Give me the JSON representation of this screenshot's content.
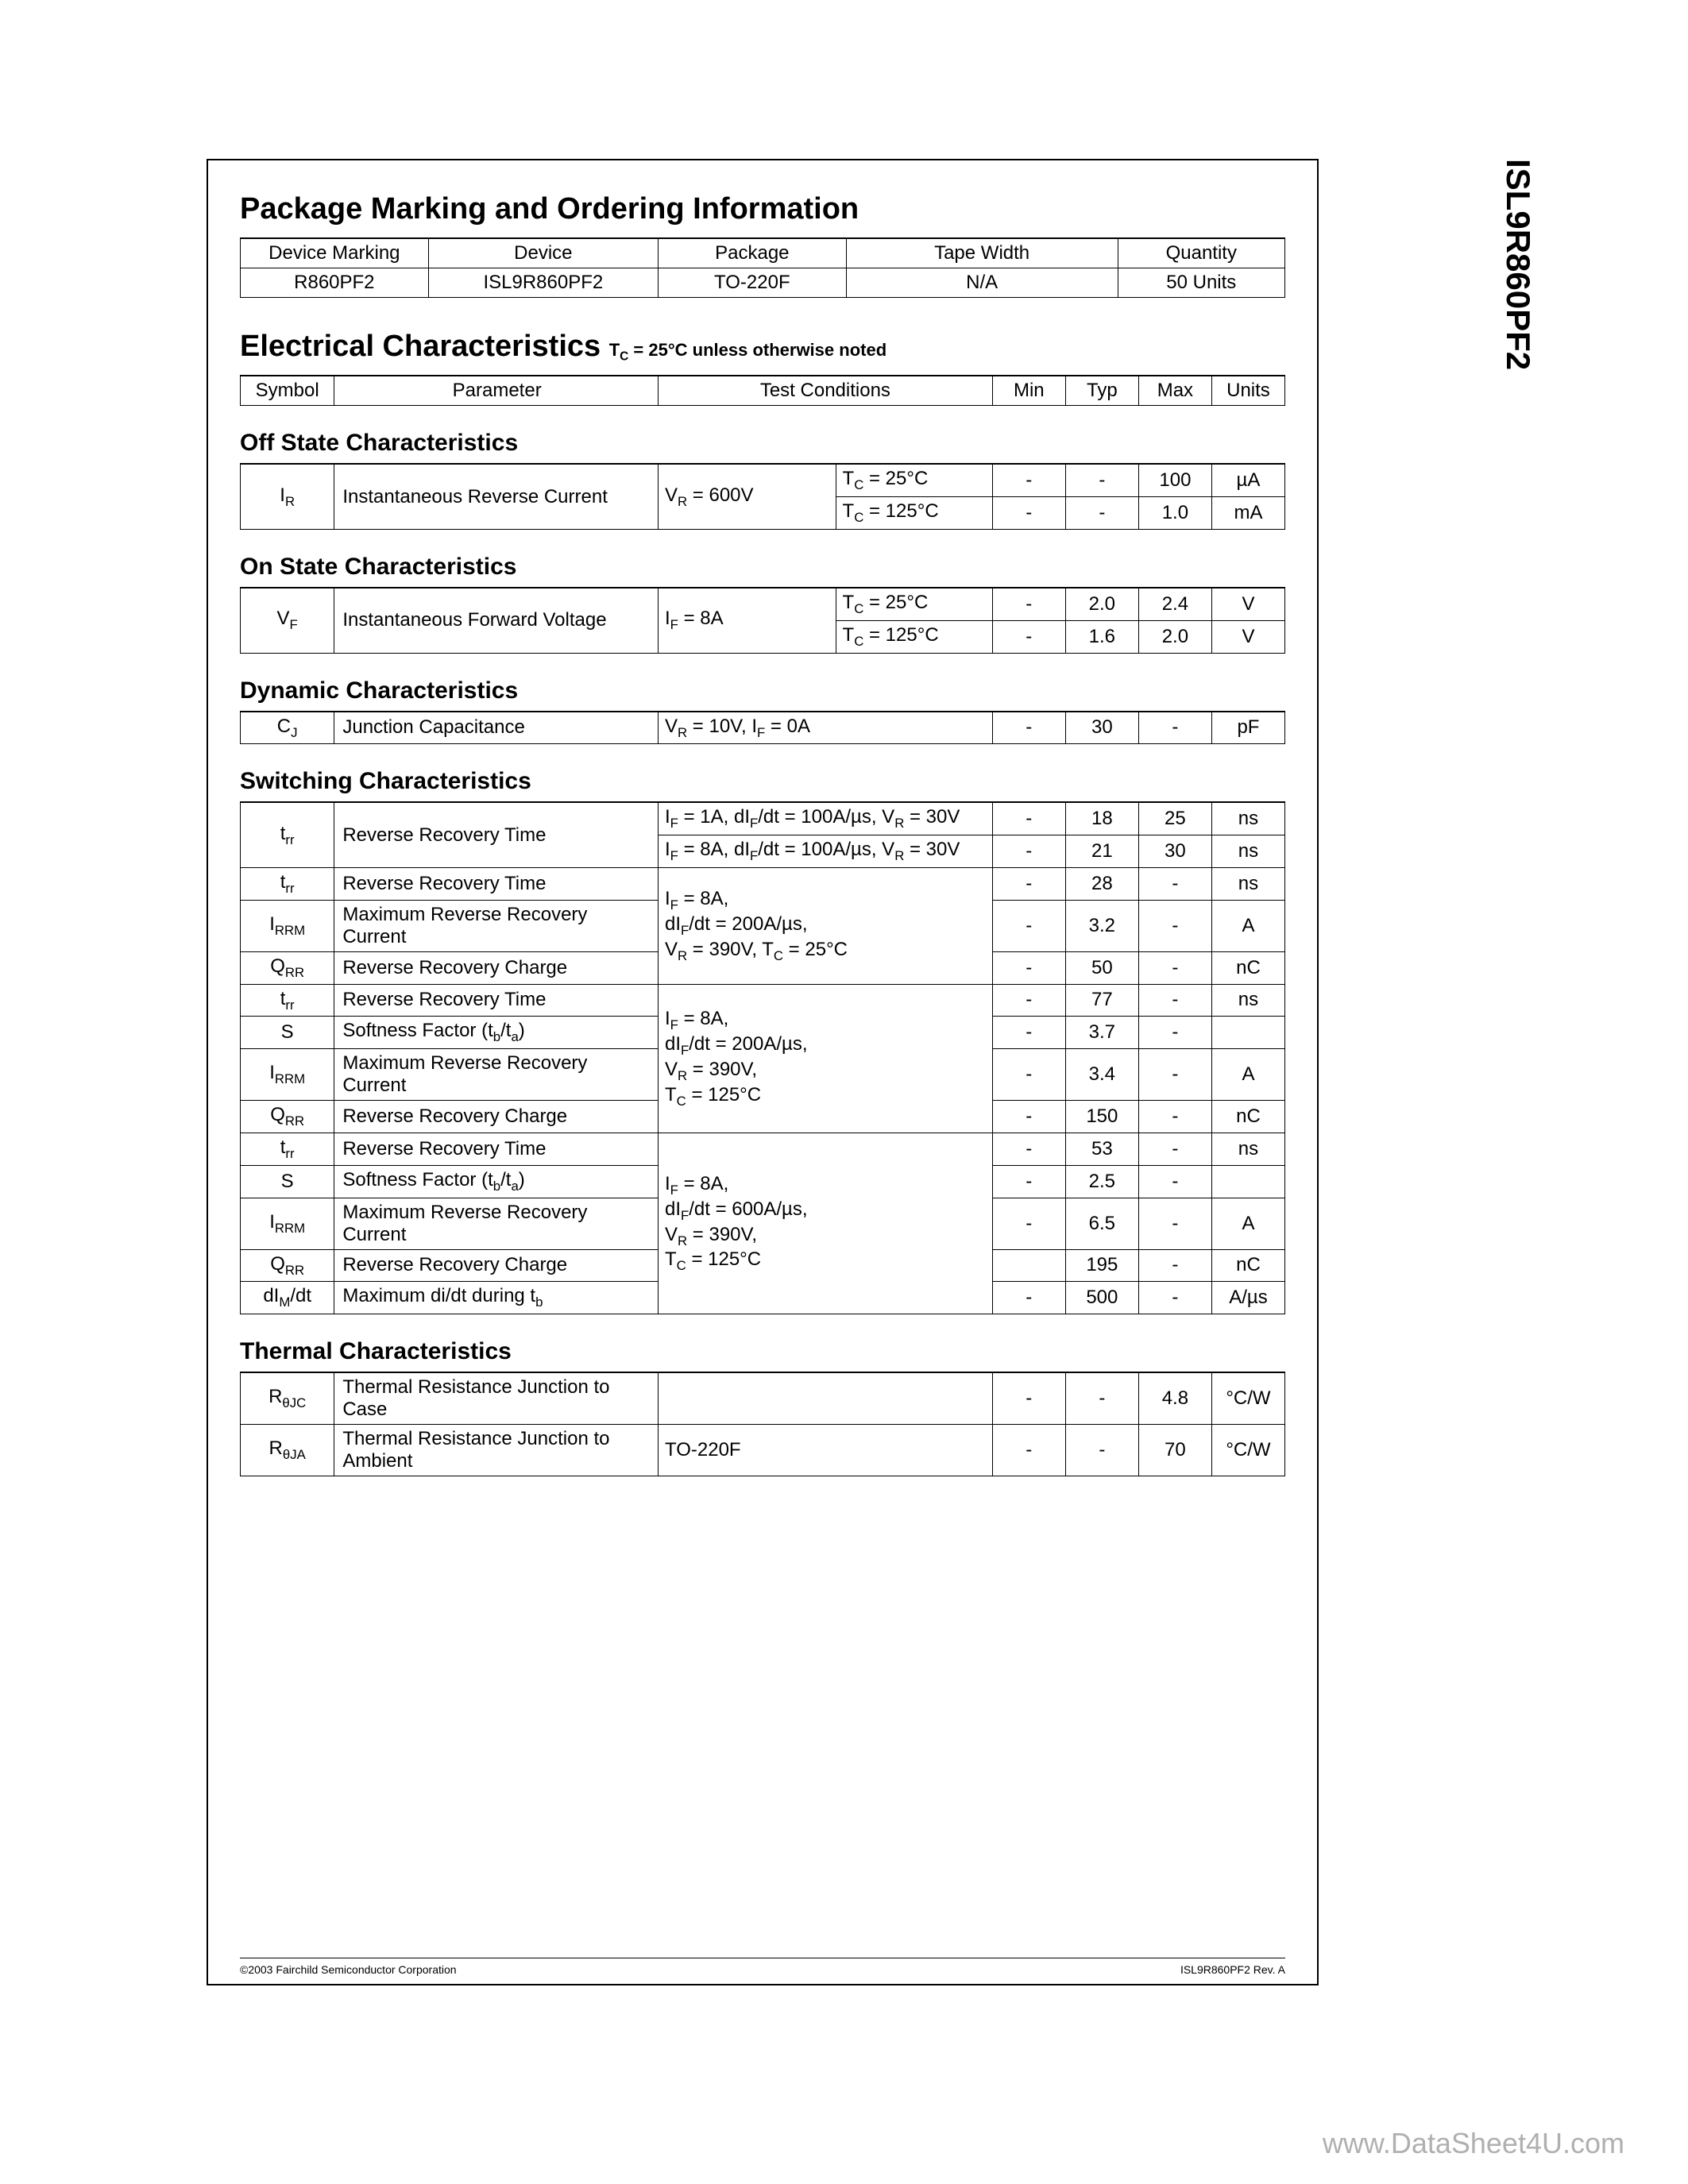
{
  "part_number": "ISL9R860PF2",
  "sections": {
    "ordering": {
      "title": "Package Marking and Ordering Information",
      "headers": [
        "Device Marking",
        "Device",
        "Package",
        "Tape Width",
        "Quantity"
      ],
      "row": [
        "R860PF2",
        "ISL9R860PF2",
        "TO-220F",
        "N/A",
        "50 Units"
      ]
    },
    "electrical": {
      "title": "Electrical Characteristics",
      "subnote_prefix": "T",
      "subnote_sub": "C",
      "subnote_rest": " = 25°C unless otherwise noted",
      "headers": [
        "Symbol",
        "Parameter",
        "Test Conditions",
        "Min",
        "Typ",
        "Max",
        "Units"
      ]
    },
    "off_state": {
      "title": "Off State Characteristics",
      "symbol_html": "I<sub>R</sub>",
      "param": "Instantaneous Reverse Current",
      "cond1_html": "V<sub>R</sub> = 600V",
      "rows": [
        {
          "cond2_html": "T<sub>C</sub> = 25°C",
          "min": "-",
          "typ": "-",
          "max": "100",
          "units": "µA"
        },
        {
          "cond2_html": "T<sub>C</sub> = 125°C",
          "min": "-",
          "typ": "-",
          "max": "1.0",
          "units": "mA"
        }
      ]
    },
    "on_state": {
      "title": "On State Characteristics",
      "symbol_html": "V<sub>F</sub>",
      "param": "Instantaneous Forward Voltage",
      "cond1_html": "I<sub>F</sub> = 8A",
      "rows": [
        {
          "cond2_html": "T<sub>C</sub> = 25°C",
          "min": "-",
          "typ": "2.0",
          "max": "2.4",
          "units": "V"
        },
        {
          "cond2_html": "T<sub>C</sub> = 125°C",
          "min": "-",
          "typ": "1.6",
          "max": "2.0",
          "units": "V"
        }
      ]
    },
    "dynamic": {
      "title": "Dynamic Characteristics",
      "symbol_html": "C<sub>J</sub>",
      "param": "Junction Capacitance",
      "cond_html": "V<sub>R</sub> = 10V, I<sub>F</sub> = 0A",
      "min": "-",
      "typ": "30",
      "max": "-",
      "units": "pF"
    },
    "switching": {
      "title": "Switching Characteristics",
      "block1": {
        "symbol_html": "t<sub>rr</sub>",
        "param": "Reverse Recovery Time",
        "rows": [
          {
            "cond_html": "I<sub>F</sub> = 1A, dI<sub>F</sub>/dt = 100A/µs, V<sub>R</sub> = 30V",
            "min": "-",
            "typ": "18",
            "max": "25",
            "units": "ns"
          },
          {
            "cond_html": "I<sub>F</sub> = 8A, dI<sub>F</sub>/dt = 100A/µs, V<sub>R</sub> = 30V",
            "min": "-",
            "typ": "21",
            "max": "30",
            "units": "ns"
          }
        ]
      },
      "block2": {
        "cond_html": "I<sub>F</sub> = 8A,<br>dI<sub>F</sub>/dt = 200A/µs,<br>V<sub>R</sub> = 390V, T<sub>C</sub> = 25°C",
        "rows": [
          {
            "symbol_html": "t<sub>rr</sub>",
            "param": "Reverse Recovery Time",
            "min": "-",
            "typ": "28",
            "max": "-",
            "units": "ns"
          },
          {
            "symbol_html": "I<sub>RRM</sub>",
            "param": "Maximum Reverse Recovery Current",
            "min": "-",
            "typ": "3.2",
            "max": "-",
            "units": "A"
          },
          {
            "symbol_html": "Q<sub>RR</sub>",
            "param": "Reverse Recovery Charge",
            "min": "-",
            "typ": "50",
            "max": "-",
            "units": "nC"
          }
        ]
      },
      "block3": {
        "cond_html": "I<sub>F</sub> = 8A,<br>dI<sub>F</sub>/dt = 200A/µs,<br>V<sub>R</sub> = 390V,<br>T<sub>C</sub> = 125°C",
        "rows": [
          {
            "symbol_html": "t<sub>rr</sub>",
            "param": "Reverse Recovery Time",
            "min": "-",
            "typ": "77",
            "max": "-",
            "units": "ns"
          },
          {
            "symbol_html": "S",
            "param_html": "Softness Factor (t<sub>b</sub>/t<sub>a</sub>)",
            "min": "-",
            "typ": "3.7",
            "max": "-",
            "units": ""
          },
          {
            "symbol_html": "I<sub>RRM</sub>",
            "param": "Maximum Reverse Recovery Current",
            "min": "-",
            "typ": "3.4",
            "max": "-",
            "units": "A"
          },
          {
            "symbol_html": "Q<sub>RR</sub>",
            "param": "Reverse Recovery Charge",
            "min": "-",
            "typ": "150",
            "max": "-",
            "units": "nC"
          }
        ]
      },
      "block4": {
        "cond_html": "I<sub>F</sub> = 8A,<br>dI<sub>F</sub>/dt = 600A/µs,<br>V<sub>R</sub> = 390V,<br>T<sub>C</sub> = 125°C",
        "rows": [
          {
            "symbol_html": "t<sub>rr</sub>",
            "param": "Reverse Recovery Time",
            "min": "-",
            "typ": "53",
            "max": "-",
            "units": "ns"
          },
          {
            "symbol_html": "S",
            "param_html": "Softness Factor (t<sub>b</sub>/t<sub>a</sub>)",
            "min": "-",
            "typ": "2.5",
            "max": "-",
            "units": ""
          },
          {
            "symbol_html": "I<sub>RRM</sub>",
            "param": "Maximum Reverse Recovery Current",
            "min": "-",
            "typ": "6.5",
            "max": "-",
            "units": "A"
          },
          {
            "symbol_html": "Q<sub>RR</sub>",
            "param": "Reverse Recovery Charge",
            "min": "",
            "typ": "195",
            "max": "-",
            "units": "nC"
          },
          {
            "symbol_html": "dI<sub>M</sub>/dt",
            "param_html": "Maximum di/dt during t<sub>b</sub>",
            "min": "-",
            "typ": "500",
            "max": "-",
            "units": "A/µs"
          }
        ]
      }
    },
    "thermal": {
      "title": "Thermal Characteristics",
      "rows": [
        {
          "symbol_html": "R<sub>θJC</sub>",
          "param": "Thermal Resistance Junction to Case",
          "cond": "",
          "min": "-",
          "typ": "-",
          "max": "4.8",
          "units": "°C/W"
        },
        {
          "symbol_html": "R<sub>θJA</sub>",
          "param": "Thermal Resistance Junction to Ambient",
          "cond": "TO-220F",
          "min": "-",
          "typ": "-",
          "max": "70",
          "units": "°C/W"
        }
      ]
    }
  },
  "footer": {
    "left": "©2003 Fairchild Semiconductor Corporation",
    "right": "ISL9R860PF2  Rev. A"
  },
  "watermark": "www.DataSheet4U.com"
}
